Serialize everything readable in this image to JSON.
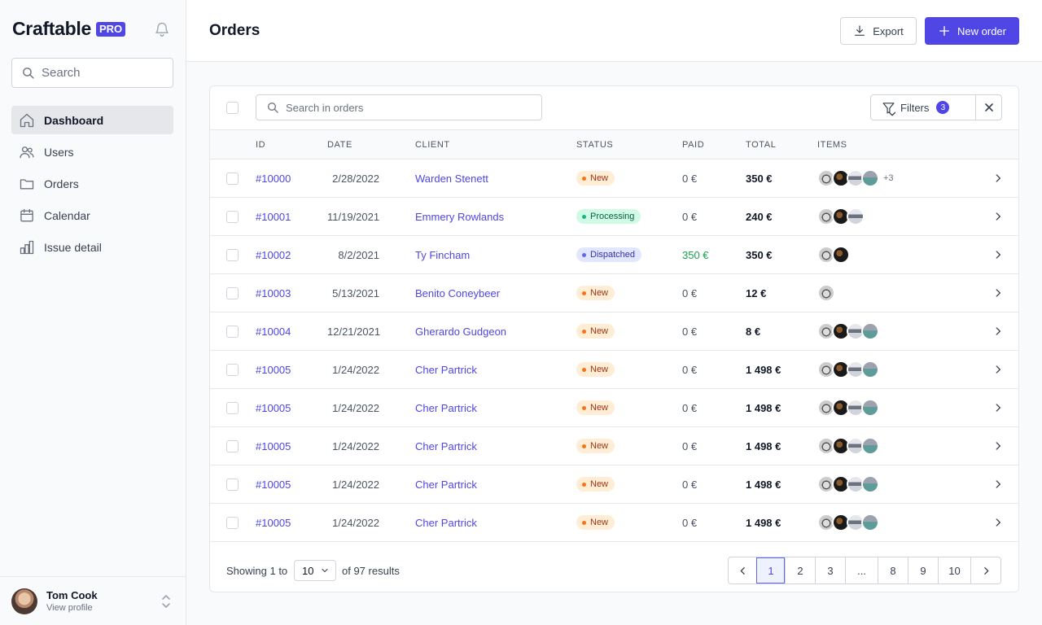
{
  "brand": {
    "name": "Craftable",
    "badge": "PRO"
  },
  "sidebar": {
    "search_placeholder": "Search",
    "items": [
      {
        "label": "Dashboard",
        "icon": "home-icon",
        "active": true
      },
      {
        "label": "Users",
        "icon": "users-icon"
      },
      {
        "label": "Orders",
        "icon": "folder-icon"
      },
      {
        "label": "Calendar",
        "icon": "calendar-icon"
      },
      {
        "label": "Issue detail",
        "icon": "chart-bar-icon"
      }
    ],
    "profile": {
      "name": "Tom Cook",
      "link": "View profile"
    }
  },
  "header": {
    "title": "Orders",
    "export_label": "Export",
    "new_label": "New order"
  },
  "toolbar": {
    "search_placeholder": "Search in orders",
    "filters_label": "Filters",
    "filters_count": "3"
  },
  "table": {
    "columns": [
      "ID",
      "DATE",
      "CLIENT",
      "STATUS",
      "PAID",
      "TOTAL",
      "ITEMS"
    ],
    "rows": [
      {
        "id": "#10000",
        "date": "2/28/2022",
        "client": "Warden Stenett",
        "status": "New",
        "status_type": "new",
        "paid": "0 €",
        "total": "350 €",
        "items": 4,
        "more": "+3"
      },
      {
        "id": "#10001",
        "date": "11/19/2021",
        "client": "Emmery Rowlands",
        "status": "Processing",
        "status_type": "processing",
        "paid": "0 €",
        "total": "240 €",
        "items": 3,
        "more": ""
      },
      {
        "id": "#10002",
        "date": "8/2/2021",
        "client": "Ty Fincham",
        "status": "Dispatched",
        "status_type": "dispatched",
        "paid": "350 €",
        "paid_green": true,
        "total": "350 €",
        "items": 2,
        "more": ""
      },
      {
        "id": "#10003",
        "date": "5/13/2021",
        "client": "Benito Coneybeer",
        "status": "New",
        "status_type": "new",
        "paid": "0 €",
        "total": "12 €",
        "items": 1,
        "more": ""
      },
      {
        "id": "#10004",
        "date": "12/21/2021",
        "client": "Gherardo Gudgeon",
        "status": "New",
        "status_type": "new",
        "paid": "0 €",
        "total": "8 €",
        "items": 4,
        "more": ""
      },
      {
        "id": "#10005",
        "date": "1/24/2022",
        "client": "Cher Partrick",
        "status": "New",
        "status_type": "new",
        "paid": "0 €",
        "total": "1 498 €",
        "items": 4,
        "more": ""
      },
      {
        "id": "#10005",
        "date": "1/24/2022",
        "client": "Cher Partrick",
        "status": "New",
        "status_type": "new",
        "paid": "0 €",
        "total": "1 498 €",
        "items": 4,
        "more": ""
      },
      {
        "id": "#10005",
        "date": "1/24/2022",
        "client": "Cher Partrick",
        "status": "New",
        "status_type": "new",
        "paid": "0 €",
        "total": "1 498 €",
        "items": 4,
        "more": ""
      },
      {
        "id": "#10005",
        "date": "1/24/2022",
        "client": "Cher Partrick",
        "status": "New",
        "status_type": "new",
        "paid": "0 €",
        "total": "1 498 €",
        "items": 4,
        "more": ""
      },
      {
        "id": "#10005",
        "date": "1/24/2022",
        "client": "Cher Partrick",
        "status": "New",
        "status_type": "new",
        "paid": "0 €",
        "total": "1 498 €",
        "items": 4,
        "more": ""
      }
    ]
  },
  "footer": {
    "showing_prefix": "Showing 1 to",
    "per_page": "10",
    "showing_suffix": "of 97 results",
    "pages": [
      "1",
      "2",
      "3",
      "...",
      "8",
      "9",
      "10"
    ],
    "current_page": "1"
  },
  "colors": {
    "accent": "#4f46e5",
    "new": "#f97316",
    "processing": "#10b981",
    "dispatched": "#6366f1",
    "paid_green": "#16a34a"
  }
}
